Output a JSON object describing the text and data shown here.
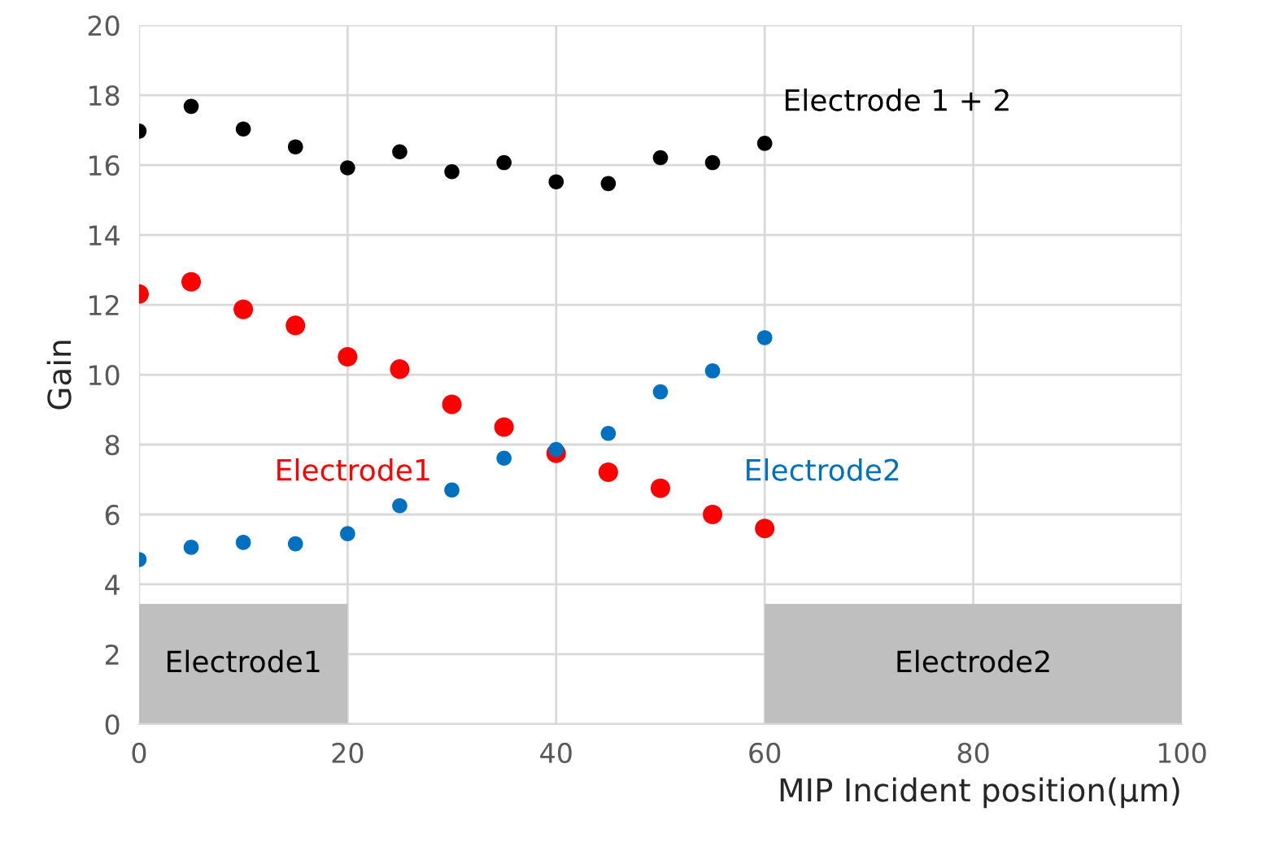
{
  "chart_data": {
    "type": "scatter",
    "xlabel": "MIP Incident position(μm)",
    "ylabel": "Gain",
    "x": [
      0,
      5,
      10,
      15,
      20,
      25,
      30,
      35,
      40,
      45,
      50,
      55,
      60
    ],
    "series": [
      {
        "name": "Electrode 1 + 2",
        "color": "#000000",
        "values": [
          16.97,
          17.68,
          17.03,
          16.52,
          15.92,
          16.38,
          15.81,
          16.07,
          15.52,
          15.47,
          16.21,
          16.07,
          16.62
        ]
      },
      {
        "name": "Electrode1",
        "color": "#ff0000",
        "values": [
          12.31,
          12.66,
          11.87,
          11.41,
          10.51,
          10.16,
          9.15,
          8.5,
          7.75,
          7.21,
          6.75,
          6.0,
          5.6
        ]
      },
      {
        "name": "Electrode2",
        "color": "#0070c0",
        "values": [
          4.71,
          5.06,
          5.2,
          5.16,
          5.45,
          6.25,
          6.7,
          7.61,
          7.86,
          8.32,
          9.51,
          10.11,
          11.06
        ]
      }
    ],
    "bands": [
      {
        "axis": "x",
        "from": 0,
        "to": 20,
        "label": "Electrode1",
        "color": "#bfbfbf"
      },
      {
        "axis": "x",
        "from": 60,
        "to": 100,
        "label": "Electrode2",
        "color": "#bfbfbf"
      }
    ],
    "xlim": [
      0,
      100
    ],
    "xticks": [
      0,
      20,
      40,
      60,
      80,
      100
    ],
    "ylim": [
      0,
      20
    ],
    "yticks": [
      0,
      2,
      4,
      6,
      8,
      10,
      12,
      14,
      16,
      18,
      20
    ],
    "grid": true,
    "marker": "circle",
    "legend": false
  }
}
